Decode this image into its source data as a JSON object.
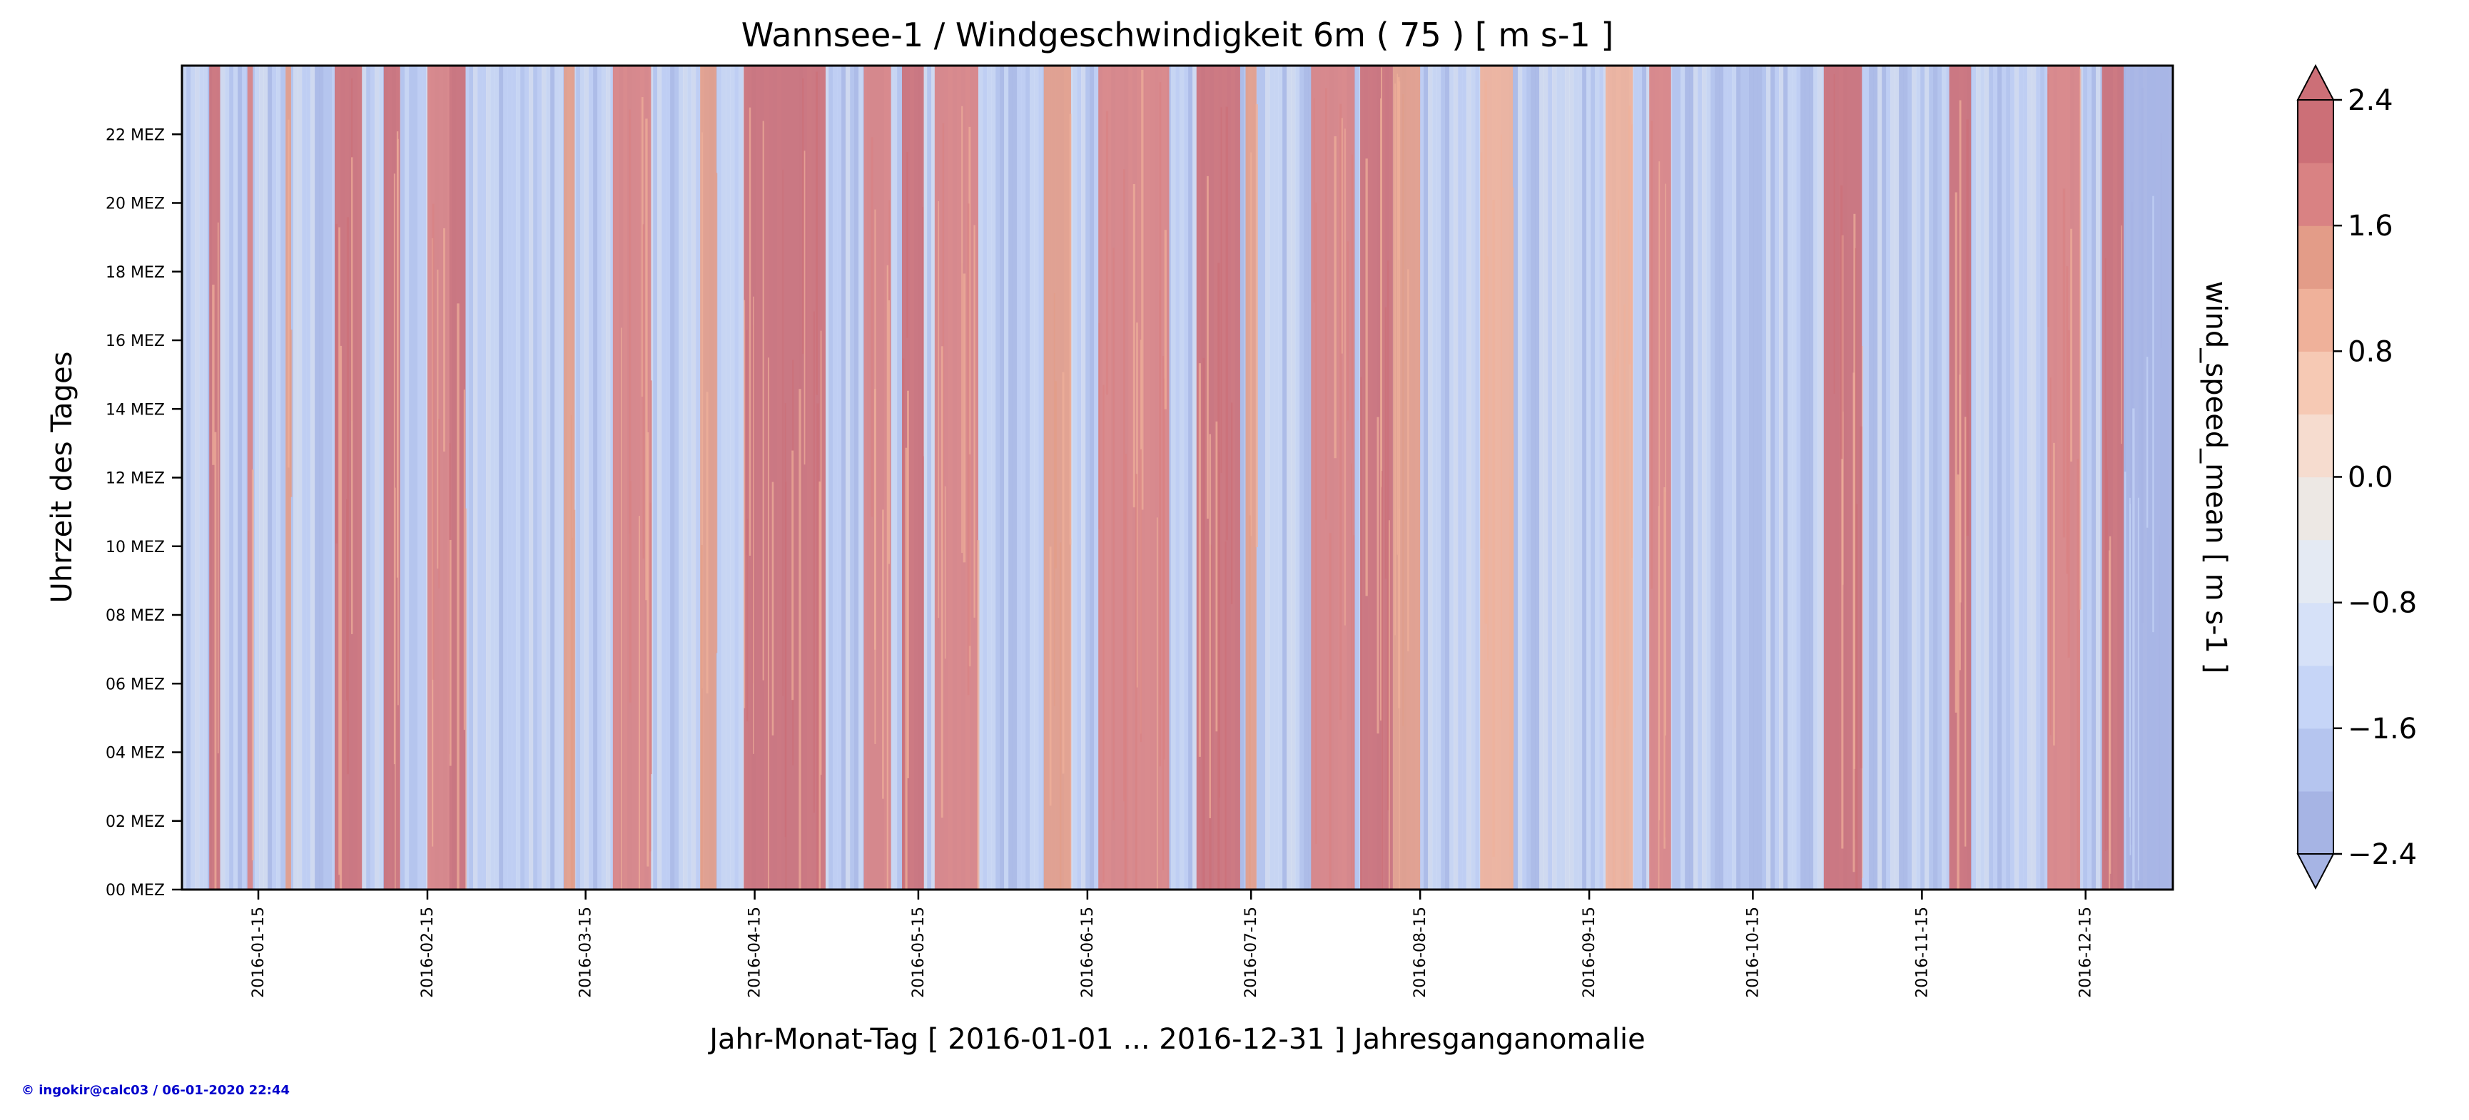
{
  "chart_data": {
    "type": "heatmap",
    "title": "Wannsee-1 / Windgeschwindigkeit 6m ( 75 ) [ m s-1 ]",
    "xlabel": "Jahr-Monat-Tag [ 2016-01-01 ... 2016-12-31 ] Jahresganganomalie",
    "ylabel": "Uhrzeit des Tages",
    "colorbar_label": "wind_speed_mean [ m s-1 ]",
    "x_range": [
      "2016-01-01",
      "2016-12-31"
    ],
    "y_range_hours": [
      0,
      24
    ],
    "x_ticks": [
      "2016-01-15",
      "2016-02-15",
      "2016-03-15",
      "2016-04-15",
      "2016-05-15",
      "2016-06-15",
      "2016-07-15",
      "2016-08-15",
      "2016-09-15",
      "2016-10-15",
      "2016-11-15",
      "2016-12-15"
    ],
    "y_ticks": [
      {
        "hour": 0,
        "label": "00 MEZ"
      },
      {
        "hour": 2,
        "label": "02 MEZ"
      },
      {
        "hour": 4,
        "label": "04 MEZ"
      },
      {
        "hour": 6,
        "label": "06 MEZ"
      },
      {
        "hour": 8,
        "label": "08 MEZ"
      },
      {
        "hour": 10,
        "label": "10 MEZ"
      },
      {
        "hour": 12,
        "label": "12 MEZ"
      },
      {
        "hour": 14,
        "label": "14 MEZ"
      },
      {
        "hour": 16,
        "label": "16 MEZ"
      },
      {
        "hour": 18,
        "label": "18 MEZ"
      },
      {
        "hour": 20,
        "label": "20 MEZ"
      },
      {
        "hour": 22,
        "label": "22 MEZ"
      }
    ],
    "colorbar": {
      "min": -2.4,
      "max": 2.4,
      "levels": [
        -2.4,
        -2.0,
        -1.6,
        -1.2,
        -0.8,
        -0.4,
        0.0,
        0.4,
        0.8,
        1.2,
        1.6,
        2.0,
        2.4
      ],
      "tick_values": [
        -2.4,
        -1.6,
        -0.8,
        0.0,
        0.8,
        1.6,
        2.4
      ],
      "tick_labels": [
        "−2.4",
        "−1.6",
        "−0.8",
        "0.0",
        "0.8",
        "1.6",
        "2.4"
      ],
      "extend": "both",
      "colors": [
        "#a6b4e4",
        "#b5c5ef",
        "#c6d5f7",
        "#d6e1f8",
        "#e4eaf3",
        "#ede8e4",
        "#f6dccf",
        "#f6c9b4",
        "#efb19a",
        "#e39c88",
        "#d98283",
        "#cc6f77"
      ]
    },
    "colormap": "coolwarm",
    "anomaly_bands": [
      {
        "start": "2016-01-06",
        "end": "2016-01-08",
        "value": 2.4
      },
      {
        "start": "2016-01-13",
        "end": "2016-01-14",
        "value": 1.6
      },
      {
        "start": "2016-01-20",
        "end": "2016-01-21",
        "value": 1.2
      },
      {
        "start": "2016-01-29",
        "end": "2016-02-03",
        "value": 2.4
      },
      {
        "start": "2016-02-07",
        "end": "2016-02-10",
        "value": 2.4
      },
      {
        "start": "2016-02-15",
        "end": "2016-02-19",
        "value": 1.6
      },
      {
        "start": "2016-02-19",
        "end": "2016-02-22",
        "value": 2.4
      },
      {
        "start": "2016-03-11",
        "end": "2016-03-13",
        "value": 1.2
      },
      {
        "start": "2016-03-20",
        "end": "2016-03-27",
        "value": 1.6
      },
      {
        "start": "2016-04-05",
        "end": "2016-04-08",
        "value": 1.2
      },
      {
        "start": "2016-04-13",
        "end": "2016-04-28",
        "value": 2.0
      },
      {
        "start": "2016-05-05",
        "end": "2016-05-10",
        "value": 1.6
      },
      {
        "start": "2016-05-12",
        "end": "2016-05-16",
        "value": 2.4
      },
      {
        "start": "2016-05-18",
        "end": "2016-05-26",
        "value": 1.6
      },
      {
        "start": "2016-06-07",
        "end": "2016-06-12",
        "value": 1.2
      },
      {
        "start": "2016-06-17",
        "end": "2016-06-30",
        "value": 1.6
      },
      {
        "start": "2016-07-05",
        "end": "2016-07-13",
        "value": 2.0
      },
      {
        "start": "2016-07-14",
        "end": "2016-07-16",
        "value": 1.2
      },
      {
        "start": "2016-07-26",
        "end": "2016-08-03",
        "value": 1.6
      },
      {
        "start": "2016-08-04",
        "end": "2016-08-10",
        "value": 2.0
      },
      {
        "start": "2016-08-10",
        "end": "2016-08-15",
        "value": 1.2
      },
      {
        "start": "2016-08-26",
        "end": "2016-09-01",
        "value": 0.8
      },
      {
        "start": "2016-09-18",
        "end": "2016-09-23",
        "value": 0.8
      },
      {
        "start": "2016-09-26",
        "end": "2016-09-30",
        "value": 1.6
      },
      {
        "start": "2016-10-28",
        "end": "2016-11-04",
        "value": 2.4
      },
      {
        "start": "2016-11-20",
        "end": "2016-11-24",
        "value": 2.4
      },
      {
        "start": "2016-12-08",
        "end": "2016-12-14",
        "value": 1.6
      },
      {
        "start": "2016-12-18",
        "end": "2016-12-22",
        "value": 2.4
      },
      {
        "start": "2016-12-22",
        "end": "2016-12-31",
        "value": -2.4
      }
    ]
  },
  "footer": {
    "copyright": "© ingokir@calc03 / 06-01-2020 22:44"
  }
}
